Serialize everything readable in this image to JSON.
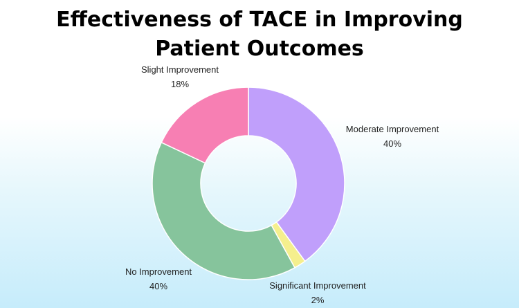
{
  "chart_data": {
    "type": "pie",
    "variant": "donut",
    "title": "Effectiveness of TACE in Improving Patient Outcomes",
    "unit": "%",
    "slices": [
      {
        "label": "Moderate Improvement",
        "value": 40,
        "value_label": "40%",
        "color": "#c09ffb"
      },
      {
        "label": "Significant Improvement",
        "value": 2,
        "value_label": "2%",
        "color": "#f5ef8d"
      },
      {
        "label": "No Improvement",
        "value": 40,
        "value_label": "40%",
        "color": "#86c49c"
      },
      {
        "label": "Slight Improvement",
        "value": 18,
        "value_label": "18%",
        "color": "#f77fb3"
      }
    ],
    "legend": "none"
  }
}
